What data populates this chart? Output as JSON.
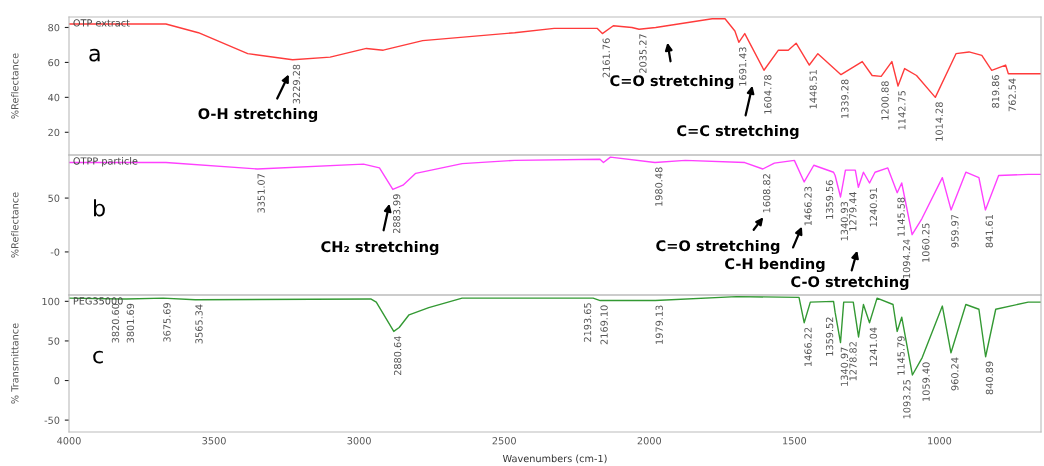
{
  "chart_data": [
    {
      "type": "line",
      "ylabel": "%Reflectance",
      "xlim": [
        4000,
        650
      ],
      "ylim": [
        7,
        86
      ],
      "yticks": [
        20,
        40,
        60,
        80
      ],
      "tick_labels": "y",
      "series": [
        {
          "name": "OTP extract",
          "color": "#ff3b3b",
          "x": [
            4000,
            3666,
            3554,
            3384,
            3229.28,
            3100,
            2975,
            2917,
            2781,
            2464,
            2328,
            2180,
            2161.76,
            2124,
            2060,
            2035.27,
            1978,
            1783,
            1739,
            1705,
            1691.43,
            1671,
            1604.78,
            1555,
            1521,
            1494,
            1448.51,
            1419,
            1339.28,
            1266,
            1232,
            1200.88,
            1164,
            1142.75,
            1120,
            1079,
            1014.28,
            943,
            898,
            854,
            819.86,
            772,
            762.54,
            694,
            650
          ],
          "values": [
            82,
            82,
            77,
            65,
            61.5,
            63,
            68,
            67,
            72.5,
            77,
            79.5,
            79.5,
            76.5,
            81,
            80,
            79,
            80,
            85,
            85,
            78,
            71.5,
            76.5,
            55.5,
            67,
            67,
            71,
            58.5,
            65,
            53,
            60.5,
            52.5,
            52,
            60.5,
            46.5,
            56.5,
            52.5,
            40,
            65,
            66,
            64,
            55.5,
            58.5,
            53.5,
            53.5,
            53.5
          ]
        }
      ],
      "annotations": [
        "a",
        "O-H stretching",
        "C=O stretching",
        "C=C stretching",
        {
          "text": "3229.28",
          "x": 3229.28,
          "y": 61.5
        },
        {
          "text": "2161.76",
          "x": 2161.76,
          "y": 76.5
        },
        {
          "text": "2035.27",
          "x": 2035.27,
          "y": 79
        },
        {
          "text": "1691.43",
          "x": 1691.43,
          "y": 71.5
        },
        {
          "text": "1604.78",
          "x": 1604.78,
          "y": 55.5
        },
        {
          "text": "1448.51",
          "x": 1448.51,
          "y": 58.5
        },
        {
          "text": "1339.28",
          "x": 1339.28,
          "y": 53
        },
        {
          "text": "1200.88",
          "x": 1200.88,
          "y": 52
        },
        {
          "text": "1142.75",
          "x": 1142.75,
          "y": 46.5
        },
        {
          "text": "1014.28",
          "x": 1014.28,
          "y": 40
        },
        {
          "text": "819.86",
          "x": 819.86,
          "y": 55.5
        },
        {
          "text": "762.54",
          "x": 762.54,
          "y": 53.5
        }
      ]
    },
    {
      "type": "line",
      "ylabel": "%Reflectance",
      "xlim": [
        4000,
        650
      ],
      "ylim": [
        -40,
        90
      ],
      "yticks": [
        50,
        {
          "value": 0,
          "label": "-0"
        }
      ],
      "tick_labels": "y",
      "series": [
        {
          "name": "OTPP particle",
          "color": "#ff40ff",
          "x": [
            4000,
            3666,
            3351.07,
            2985,
            2930,
            2883.99,
            2849,
            2805,
            2645,
            2464,
            2170,
            2158,
            2134,
            1980.48,
            1876,
            1671,
            1608.82,
            1569,
            1500,
            1466.23,
            1433,
            1365,
            1359.56,
            1340.93,
            1324,
            1290,
            1279.44,
            1262,
            1240.91,
            1222,
            1178,
            1145.58,
            1130,
            1094.24,
            1060.25,
            990,
            959.97,
            909,
            864,
            841.61,
            796,
            694,
            650
          ],
          "values": [
            83,
            83,
            77,
            81.5,
            78,
            58,
            62,
            73,
            82,
            85,
            86,
            83,
            88,
            83,
            85,
            83,
            77,
            82.5,
            85,
            65,
            80.5,
            74,
            71,
            51,
            76,
            76,
            60,
            74,
            64,
            74,
            78,
            55,
            64,
            16,
            31,
            69,
            39,
            74,
            69,
            39,
            71,
            72,
            72
          ]
        }
      ],
      "annotations": [
        "b",
        "CH₂ stretching",
        "C=O stretching",
        "C-H bending",
        "C-O stretching",
        {
          "text": "3351.07",
          "x": 3351.07,
          "y": 77
        },
        {
          "text": "2883.99",
          "x": 2883.99,
          "y": 58
        },
        {
          "text": "1980.48",
          "x": 1980.48,
          "y": 83
        },
        {
          "text": "1608.82",
          "x": 1608.82,
          "y": 77
        },
        {
          "text": "1466.23",
          "x": 1466.23,
          "y": 65
        },
        {
          "text": "1359.56",
          "x": 1359.56,
          "y": 71
        },
        {
          "text": "1340.93",
          "x": 1340.93,
          "y": 51
        },
        {
          "text": "1279.44",
          "x": 1279.44,
          "y": 60
        },
        {
          "text": "1240.91",
          "x": 1240.91,
          "y": 64
        },
        {
          "text": "1145.58",
          "x": 1145.58,
          "y": 55
        },
        {
          "text": "1094.24",
          "x": 1094.24,
          "y": 16
        },
        {
          "text": "1060.25",
          "x": 1060.25,
          "y": 31
        },
        {
          "text": "959.97",
          "x": 959.97,
          "y": 39
        },
        {
          "text": "841.61",
          "x": 841.61,
          "y": 39
        }
      ]
    },
    {
      "type": "line",
      "ylabel": "% Transmittance",
      "xlabel": "Wavenumbers (cm-1)",
      "xlim": [
        4000,
        650
      ],
      "xticks": [
        4000,
        3500,
        3000,
        2500,
        2000,
        1500,
        1000
      ],
      "ylim": [
        -65,
        108
      ],
      "yticks": [
        100,
        50,
        0,
        -50
      ],
      "series": [
        {
          "name": "PEG35000",
          "color": "#339933",
          "x": [
            4000,
            3820.6,
            3801.69,
            3675.69,
            3565.34,
            2960,
            2941,
            2880.64,
            2862,
            2828,
            2760,
            2645,
            2193.65,
            2169.1,
            1979.13,
            1700,
            1484,
            1466.22,
            1445,
            1365,
            1359.52,
            1340.97,
            1330,
            1297,
            1278.82,
            1262,
            1241.04,
            1215,
            1160,
            1145.79,
            1130,
            1093.25,
            1059.4,
            990,
            960.24,
            909,
            864,
            840.89,
            806,
            694,
            650
          ],
          "values": [
            104,
            103,
            103,
            104,
            102,
            103,
            99,
            62,
            67,
            83,
            92,
            104,
            104,
            101,
            101,
            106,
            105,
            73,
            99,
            100,
            86,
            48,
            99,
            99,
            55,
            96,
            73,
            104,
            96,
            62,
            80,
            7,
            29,
            94,
            35,
            96,
            90,
            30,
            90,
            99,
            99
          ]
        }
      ],
      "annotations": [
        "c",
        {
          "text": "3820.60",
          "x": 3820.6,
          "y": 103
        },
        {
          "text": "3801.69",
          "x": 3801.69,
          "y": 103
        },
        {
          "text": "3675.69",
          "x": 3675.69,
          "y": 104
        },
        {
          "text": "3565.34",
          "x": 3565.34,
          "y": 102
        },
        {
          "text": "2880.64",
          "x": 2880.64,
          "y": 62
        },
        {
          "text": "2193.65",
          "x": 2193.65,
          "y": 104
        },
        {
          "text": "2169.10",
          "x": 2169.1,
          "y": 101
        },
        {
          "text": "1979.13",
          "x": 1979.13,
          "y": 101
        },
        {
          "text": "1466.22",
          "x": 1466.22,
          "y": 73
        },
        {
          "text": "1359.52",
          "x": 1359.52,
          "y": 86
        },
        {
          "text": "1340.97",
          "x": 1340.97,
          "y": 48
        },
        {
          "text": "1278.82",
          "x": 1278.82,
          "y": 55
        },
        {
          "text": "1241.04",
          "x": 1241.04,
          "y": 73
        },
        {
          "text": "1145.79",
          "x": 1145.79,
          "y": 62
        },
        {
          "text": "1093.25",
          "x": 1093.25,
          "y": 7
        },
        {
          "text": "1059.40",
          "x": 1059.4,
          "y": 29
        },
        {
          "text": "960.24",
          "x": 960.24,
          "y": 35
        },
        {
          "text": "840.89",
          "x": 840.89,
          "y": 30
        }
      ]
    }
  ]
}
